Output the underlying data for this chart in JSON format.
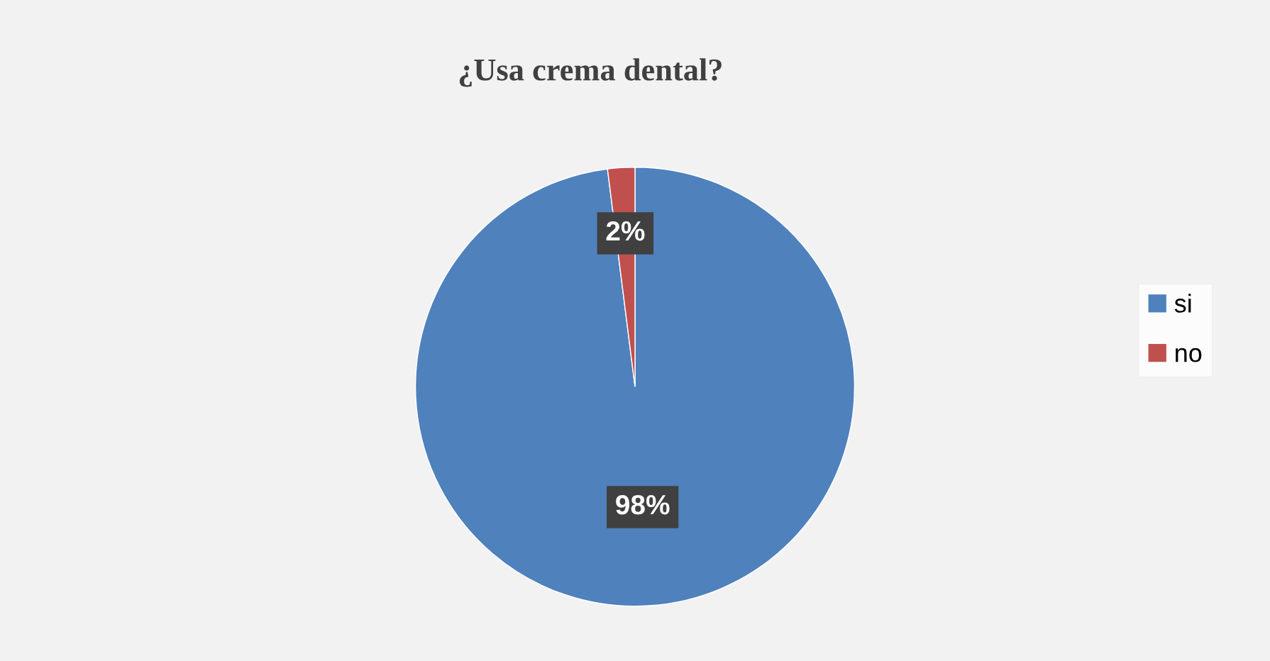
{
  "chart_data": {
    "type": "pie",
    "title": "¿Usa crema dental?",
    "categories": [
      "si",
      "no"
    ],
    "values": [
      98,
      2
    ],
    "colors": [
      "#4f81bd",
      "#c0504d"
    ],
    "value_labels": [
      "98%",
      "2%"
    ],
    "legend": "right"
  }
}
